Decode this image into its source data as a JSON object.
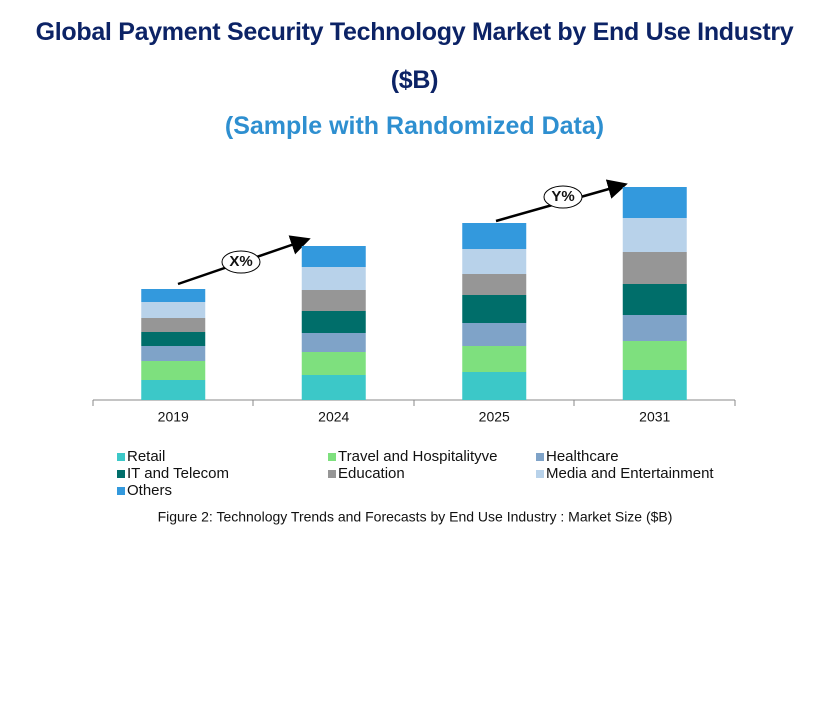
{
  "chart_data": {
    "type": "stacked_bar",
    "title": "Global Payment Security Technology Market by End Use Industry ($B)",
    "subtitle": "(Sample with Randomized Data)",
    "categories": [
      "2019",
      "2024",
      "2025",
      "2031"
    ],
    "series": [
      {
        "name": "Retail",
        "color": "#3cc8c8",
        "values": [
          2.0,
          2.5,
          2.8,
          3.0
        ]
      },
      {
        "name": "Travel and Hospitalityve",
        "color": "#7ee07e",
        "values": [
          1.9,
          2.3,
          2.6,
          2.9
        ]
      },
      {
        "name": "Healthcare",
        "color": "#7fa3c8",
        "values": [
          1.5,
          1.9,
          2.3,
          2.6
        ]
      },
      {
        "name": "IT and Telecom",
        "color": "#006e6a",
        "values": [
          1.4,
          2.2,
          2.8,
          3.1
        ]
      },
      {
        "name": "Education",
        "color": "#969696",
        "values": [
          1.4,
          2.1,
          2.1,
          3.2
        ]
      },
      {
        "name": "Media and Entertainment",
        "color": "#b8d2ea",
        "values": [
          1.6,
          2.3,
          2.5,
          3.4
        ]
      },
      {
        "name": "Others",
        "color": "#3399dd",
        "values": [
          1.3,
          2.1,
          2.6,
          3.1
        ]
      }
    ],
    "annotations": [
      "X%",
      "Y%"
    ],
    "caption": "Figure 2: Technology  Trends  and Forecasts by  End Use Industry   : Market Size ($B)"
  }
}
